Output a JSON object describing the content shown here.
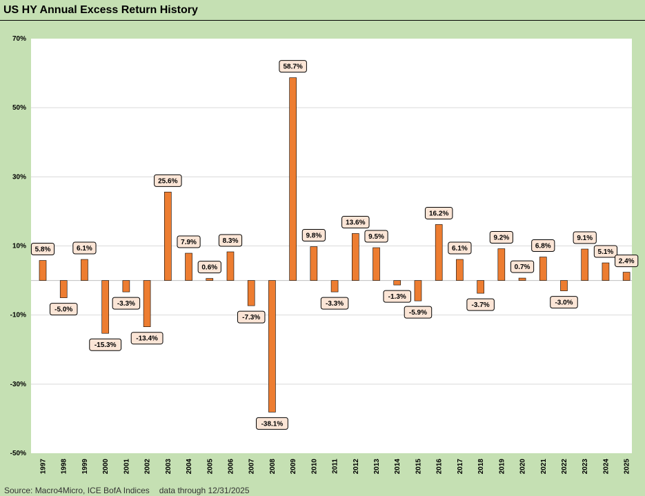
{
  "title": "US HY Annual Excess Return History",
  "footer": {
    "source": "Source: Macro4Micro, ICE BofA Indices",
    "note": "data through 12/31/2025"
  },
  "colors": {
    "bar": "#ed7d31",
    "bar_stroke": "#000000",
    "label_bg": "#fbe5d6",
    "plot_bg": "#ffffff",
    "grid": "#d9d9d9",
    "frame": "#c5e0b3"
  },
  "chart_data": {
    "type": "bar",
    "title": "US HY Annual Excess Return History",
    "xlabel": "",
    "ylabel": "",
    "ylim": [
      -50,
      70
    ],
    "yticks": [
      -50,
      -30,
      -10,
      10,
      30,
      50,
      70
    ],
    "ytick_labels": [
      "-50%",
      "-30%",
      "-10%",
      "10%",
      "30%",
      "50%",
      "70%"
    ],
    "grid": true,
    "categories": [
      "1997",
      "1998",
      "1999",
      "2000",
      "2001",
      "2002",
      "2003",
      "2004",
      "2005",
      "2006",
      "2007",
      "2008",
      "2009",
      "2010",
      "2011",
      "2012",
      "2013",
      "2014",
      "2015",
      "2016",
      "2017",
      "2018",
      "2019",
      "2020",
      "2021",
      "2022",
      "2023",
      "2024",
      "2025"
    ],
    "values": [
      5.8,
      -5.0,
      6.1,
      -15.3,
      -3.3,
      -13.4,
      25.6,
      7.9,
      0.6,
      8.3,
      -7.3,
      -38.1,
      58.7,
      9.8,
      -3.3,
      13.6,
      9.5,
      -1.3,
      -5.9,
      16.2,
      6.1,
      -3.7,
      9.2,
      0.7,
      6.8,
      -3.0,
      9.1,
      5.1,
      2.4
    ],
    "data_labels": [
      "5.8%",
      "-5.0%",
      "6.1%",
      "-15.3%",
      "-3.3%",
      "-13.4%",
      "25.6%",
      "7.9%",
      "0.6%",
      "8.3%",
      "-7.3%",
      "-38.1%",
      "58.7%",
      "9.8%",
      "-3.3%",
      "13.6%",
      "9.5%",
      "-1.3%",
      "-5.9%",
      "16.2%",
      "6.1%",
      "-3.7%",
      "9.2%",
      "0.7%",
      "6.8%",
      "-3.0%",
      "9.1%",
      "5.1%",
      "2.4%"
    ]
  }
}
